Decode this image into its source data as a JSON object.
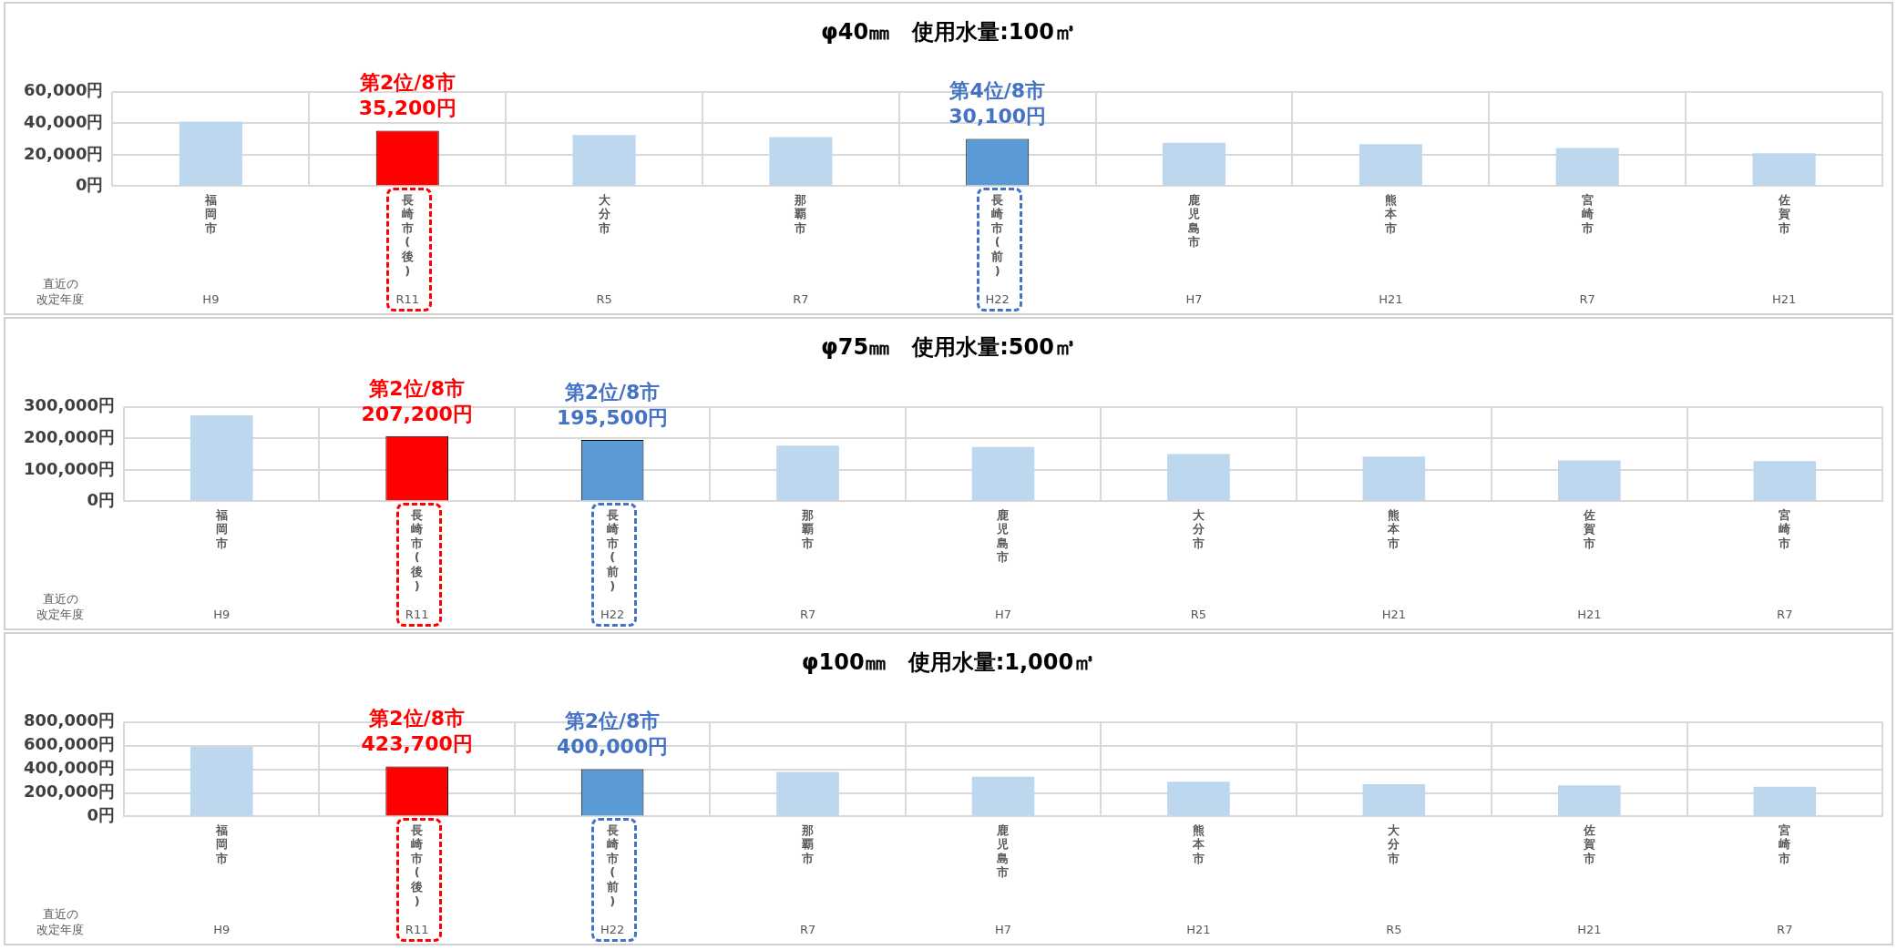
{
  "chart_data": [
    {
      "type": "bar",
      "title": "φ40㎜　使用水量:100㎥",
      "categories": [
        "福岡市",
        "長崎市(後)",
        "大分市",
        "那覇市",
        "長崎市(前)",
        "鹿児島市",
        "熊本市",
        "宮崎市",
        "佐賀市"
      ],
      "values": [
        41000,
        35200,
        32500,
        31200,
        30100,
        27600,
        26700,
        24200,
        20900
      ],
      "colors": [
        "#bdd7ee",
        "#ff0000",
        "#bdd7ee",
        "#bdd7ee",
        "#5b9bd5",
        "#bdd7ee",
        "#bdd7ee",
        "#bdd7ee",
        "#bdd7ee"
      ],
      "value_labels": [
        null,
        "第2位/8市\n35,200円",
        null,
        null,
        "第4位/8市\n30,100円",
        null,
        null,
        null,
        null
      ],
      "ylim": [
        0,
        60000
      ],
      "yticks": [
        {
          "value": 0,
          "label": "0円"
        },
        {
          "value": 20000,
          "label": "20,000円"
        },
        {
          "value": 40000,
          "label": "40,000円"
        },
        {
          "value": 60000,
          "label": "60,000円"
        }
      ],
      "grid": true,
      "annotations": [
        "直近の改定年度",
        "H9",
        "R11",
        "R5",
        "R7",
        "H22",
        "H7",
        "H21",
        "R7",
        "H21"
      ]
    },
    {
      "type": "bar",
      "title": "φ75㎜　使用水量:500㎥",
      "categories": [
        "福岡市",
        "長崎市(後)",
        "長崎市(前)",
        "那覇市",
        "鹿児島市",
        "大分市",
        "熊本市",
        "佐賀市",
        "宮崎市"
      ],
      "values": [
        273000,
        207200,
        195500,
        177000,
        173000,
        150000,
        142000,
        130000,
        128000
      ],
      "colors": [
        "#bdd7ee",
        "#ff0000",
        "#5b9bd5",
        "#bdd7ee",
        "#bdd7ee",
        "#bdd7ee",
        "#bdd7ee",
        "#bdd7ee",
        "#bdd7ee"
      ],
      "value_labels": [
        null,
        "第2位/8市\n207,200円",
        "第2位/8市\n195,500円",
        null,
        null,
        null,
        null,
        null,
        null
      ],
      "ylim": [
        0,
        300000
      ],
      "yticks": [
        {
          "value": 0,
          "label": "0円"
        },
        {
          "value": 100000,
          "label": "100,000円"
        },
        {
          "value": 200000,
          "label": "200,000円"
        },
        {
          "value": 300000,
          "label": "300,000円"
        }
      ],
      "grid": true,
      "annotations": [
        "直近の改定年度",
        "H9",
        "R11",
        "H22",
        "R7",
        "H7",
        "R5",
        "H21",
        "H21",
        "R7"
      ]
    },
    {
      "type": "bar",
      "title": "φ100㎜　使用水量:1,000㎥",
      "categories": [
        "福岡市",
        "長崎市(後)",
        "長崎市(前)",
        "那覇市",
        "鹿児島市",
        "熊本市",
        "大分市",
        "佐賀市",
        "宮崎市"
      ],
      "values": [
        590000,
        423700,
        400000,
        377000,
        337000,
        295000,
        274000,
        263000,
        253000
      ],
      "colors": [
        "#bdd7ee",
        "#ff0000",
        "#5b9bd5",
        "#bdd7ee",
        "#bdd7ee",
        "#bdd7ee",
        "#bdd7ee",
        "#bdd7ee",
        "#bdd7ee"
      ],
      "value_labels": [
        null,
        "第2位/8市\n423,700円",
        "第2位/8市\n400,000円",
        null,
        null,
        null,
        null,
        null,
        null
      ],
      "ylim": [
        0,
        800000
      ],
      "yticks": [
        {
          "value": 0,
          "label": "0円"
        },
        {
          "value": 200000,
          "label": "200,000円"
        },
        {
          "value": 400000,
          "label": "400,000円"
        },
        {
          "value": 600000,
          "label": "600,000円"
        },
        {
          "value": 800000,
          "label": "800,000円"
        }
      ],
      "grid": true,
      "annotations": [
        "直近の改定年度",
        "H9",
        "R11",
        "H22",
        "R7",
        "H7",
        "H21",
        "R5",
        "H21",
        "R7"
      ]
    }
  ]
}
